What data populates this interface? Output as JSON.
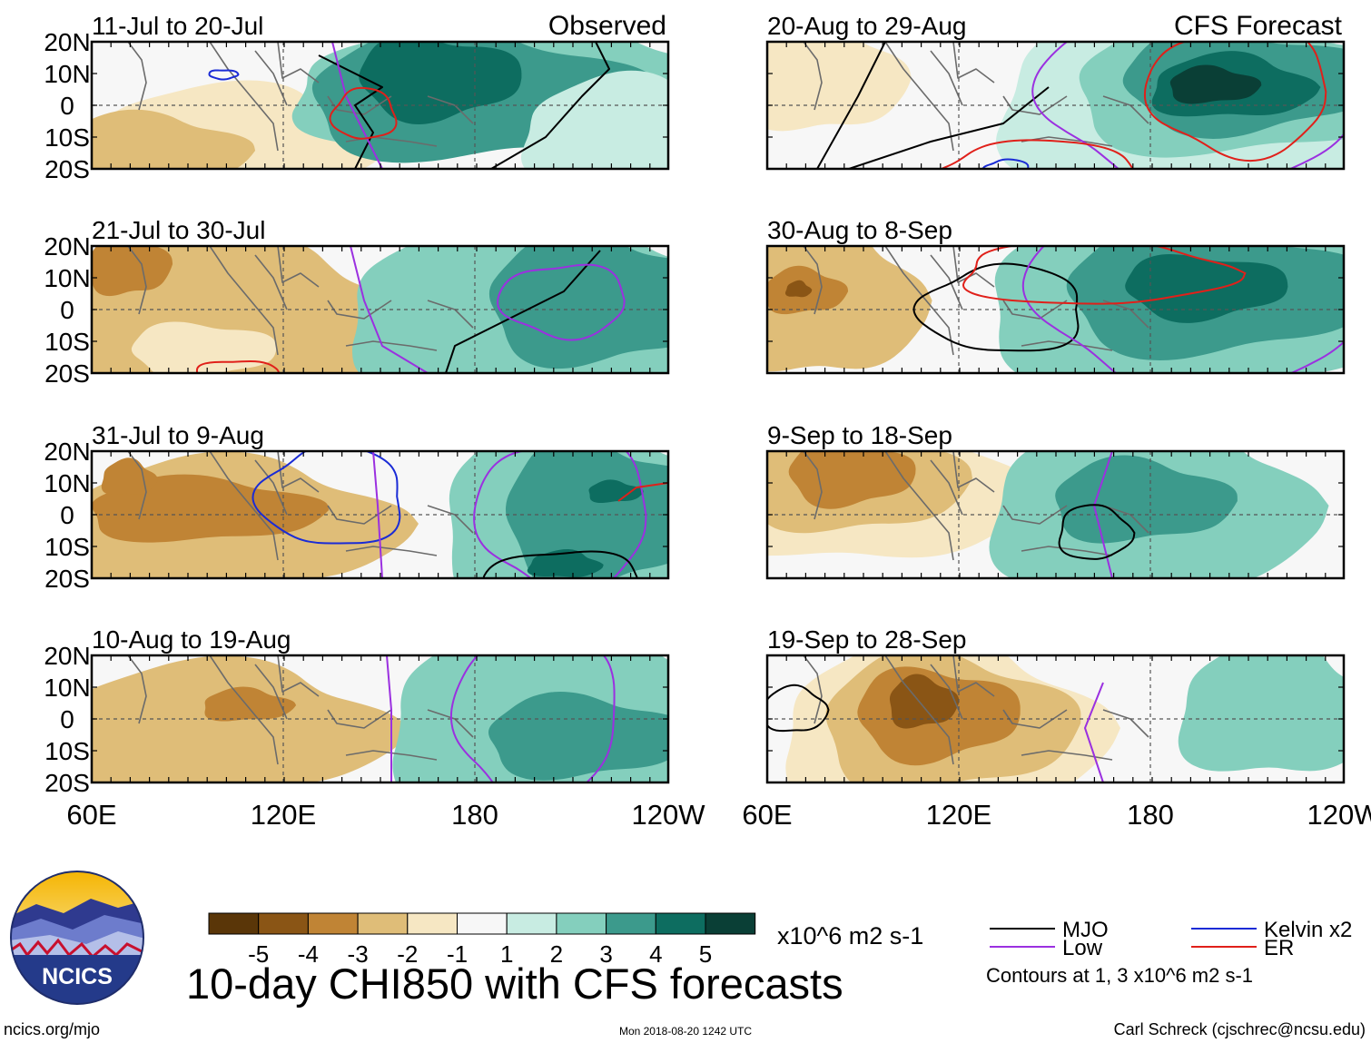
{
  "figure": {
    "title": "10-day CHI850 with CFS forecasts",
    "observed_label": "Observed",
    "forecast_label": "CFS Forecast",
    "website": "ncics.org/mjo",
    "timestamp": "Mon 2018-08-20 1242 UTC",
    "credit": "Carl Schreck (cjschrec@ncsu.edu)",
    "logo_text": "NCICS"
  },
  "axes": {
    "lat_labels": [
      "20N",
      "10N",
      "0",
      "10S",
      "20S"
    ],
    "lon_labels": [
      "60E",
      "120E",
      "180",
      "120W"
    ]
  },
  "panels_left": [
    {
      "period": "11-Jul to 20-Jul"
    },
    {
      "period": "21-Jul to 30-Jul"
    },
    {
      "period": "31-Jul to 9-Aug"
    },
    {
      "period": "10-Aug to 19-Aug"
    }
  ],
  "panels_right": [
    {
      "period": "20-Aug to 29-Aug"
    },
    {
      "period": "30-Aug to 8-Sep"
    },
    {
      "period": "9-Sep to 18-Sep"
    },
    {
      "period": "19-Sep to 28-Sep"
    }
  ],
  "colorbar": {
    "units": "x10^6 m2 s-1",
    "tick_labels": [
      "-5",
      "-4",
      "-3",
      "-2",
      "-1",
      "1",
      "2",
      "3",
      "4",
      "5"
    ],
    "colors": [
      "#5a3608",
      "#8a5515",
      "#c08435",
      "#dfbd78",
      "#f6e7c3",
      "#f7f7f7",
      "#c8ece2",
      "#84cfbd",
      "#3c9a8c",
      "#0d6d60",
      "#0a3f36"
    ]
  },
  "legend": {
    "entries": [
      {
        "label": "MJO",
        "color": "#000000"
      },
      {
        "label": "Kelvin x2",
        "color": "#1a2bd6"
      },
      {
        "label": "Low",
        "color": "#9b30e0"
      },
      {
        "label": "ER",
        "color": "#e0201a"
      }
    ],
    "contour_note": "Contours at 1, 3 x10^6 m2 s-1"
  }
}
